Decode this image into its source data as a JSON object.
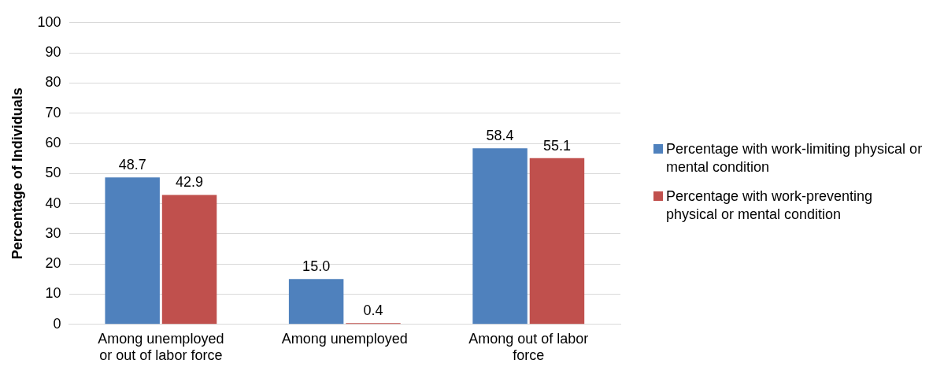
{
  "chart_data": {
    "type": "bar",
    "ylabel": "Percentage of Individuals",
    "categories": [
      "Among unemployed or out of labor force",
      "Among unemployed",
      "Among out of labor force"
    ],
    "series": [
      {
        "name": "Percentage with work-limiting physical or mental condition",
        "color": "#4f81bd",
        "values": [
          48.7,
          15.0,
          58.4
        ],
        "value_labels": [
          "48.7",
          "15.0",
          "58.4"
        ]
      },
      {
        "name": "Percentage with work-preventing physical or mental condition",
        "color": "#c0504d",
        "values": [
          42.9,
          0.4,
          55.1
        ],
        "value_labels": [
          "42.9",
          "0.4",
          "55.1"
        ]
      }
    ],
    "ylim": [
      0,
      100
    ],
    "yticks": [
      0,
      10,
      20,
      30,
      40,
      50,
      60,
      70,
      80,
      90,
      100
    ],
    "grid": "y",
    "legend": "right"
  }
}
